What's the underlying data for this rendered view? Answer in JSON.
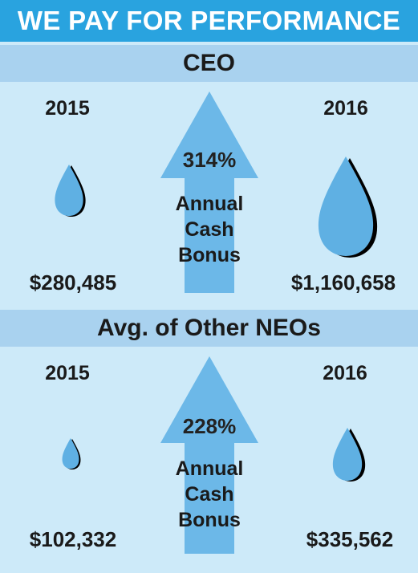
{
  "title": "WE PAY FOR PERFORMANCE",
  "sections": [
    {
      "heading": "CEO",
      "year_left": "2015",
      "year_right": "2016",
      "amount_left": "$280,485",
      "amount_right": "$1,160,658",
      "percent": "314%",
      "bonus_lines": [
        "Annual",
        "Cash",
        "Bonus"
      ]
    },
    {
      "heading": "Avg. of Other NEOs",
      "year_left": "2015",
      "year_right": "2016",
      "amount_left": "$102,332",
      "amount_right": "$335,562",
      "percent": "228%",
      "bonus_lines": [
        "Annual",
        "Cash",
        "Bonus"
      ]
    }
  ],
  "colors": {
    "title_bar": "#29a3df",
    "section_bar": "#a9d2ef",
    "background": "#cdeaf9",
    "arrow": "#6cb8e8",
    "drop": "#5fb0e3",
    "drop_shadow": "#000000"
  },
  "icons": [
    "arrow-up-icon",
    "water-drop-icon"
  ]
}
